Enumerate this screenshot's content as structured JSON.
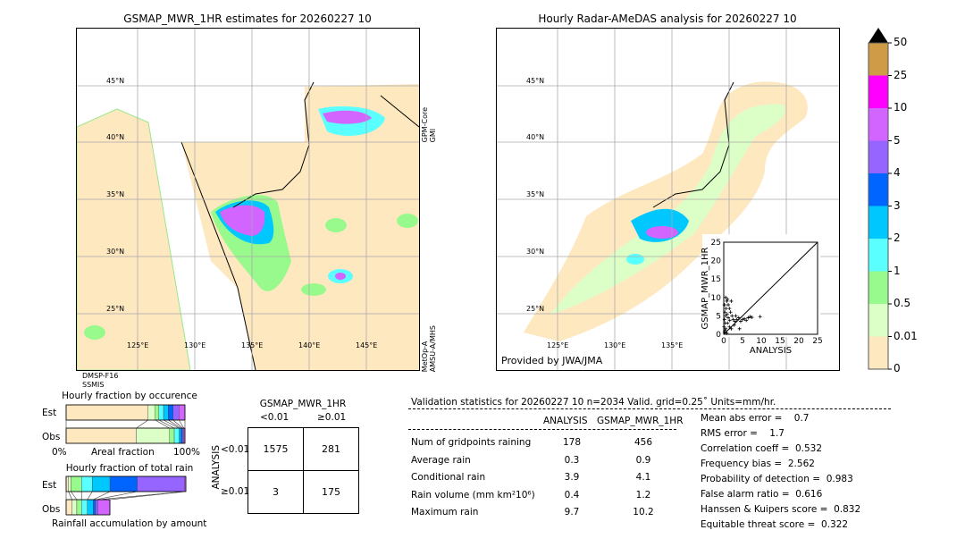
{
  "left_map": {
    "title": "GSMAP_MWR_1HR estimates for 20260227 10",
    "lat_labels": [
      "45°N",
      "40°N",
      "35°N",
      "30°N",
      "25°N"
    ],
    "lon_labels": [
      "125°E",
      "130°E",
      "135°E",
      "140°E",
      "145°E"
    ],
    "sensor_right_top": "GPM-Core\nGMI",
    "sensor_right_bottom": "MetOp-A\nAMSU-A/MHS",
    "sensor_bottom_left_1": "DMSP-F16",
    "sensor_bottom_left_2": "SSMIS"
  },
  "right_map": {
    "title": "Hourly Radar-AMeDAS analysis for 20260227 10",
    "lat_labels": [
      "45°N",
      "40°N",
      "35°N",
      "30°N",
      "25°N"
    ],
    "lon_labels": [
      "125°E",
      "130°E",
      "135°E"
    ],
    "credit": "Provided by JWA/JMA"
  },
  "colorbar": {
    "ticks": [
      "0",
      "0.01",
      "0.5",
      "1",
      "2",
      "3",
      "4",
      "5",
      "10",
      "25",
      "50"
    ],
    "colors": [
      "#fee8c0",
      "#dcffc8",
      "#98fa8c",
      "#5affff",
      "#00c8ff",
      "#0064ff",
      "#9664ff",
      "#d264ff",
      "#ff00ff",
      "#d09b46"
    ],
    "extend_color": "#000000"
  },
  "chart_data": [
    {
      "type": "scatter",
      "xlabel": "ANALYSIS",
      "ylabel": "GSMAP_MWR_1HR",
      "xlim": [
        0,
        25
      ],
      "ylim": [
        0,
        25
      ],
      "xticks": [
        "0",
        "5",
        "10",
        "15",
        "20",
        "25"
      ],
      "yticks": [
        "0",
        "5",
        "10",
        "15",
        "20",
        "25"
      ],
      "diagonal": true,
      "points": [
        [
          0.2,
          0.5
        ],
        [
          0.3,
          1
        ],
        [
          0.1,
          2
        ],
        [
          0.4,
          3
        ],
        [
          0.2,
          4
        ],
        [
          0.5,
          5
        ],
        [
          0.3,
          6
        ],
        [
          0.6,
          7
        ],
        [
          0.2,
          8
        ],
        [
          0.8,
          9
        ],
        [
          0.5,
          10
        ],
        [
          1,
          9.5
        ],
        [
          1.2,
          8
        ],
        [
          1.5,
          7
        ],
        [
          1.8,
          6
        ],
        [
          2,
          9
        ],
        [
          2.2,
          5
        ],
        [
          2.5,
          4
        ],
        [
          3,
          3.5
        ],
        [
          3.5,
          4
        ],
        [
          4,
          4.5
        ],
        [
          4.5,
          3.5
        ],
        [
          5,
          4
        ],
        [
          5.5,
          4.2
        ],
        [
          6,
          3.8
        ],
        [
          6.5,
          4.5
        ],
        [
          7,
          4.8
        ],
        [
          7.5,
          4.6
        ],
        [
          9.7,
          4.8
        ],
        [
          1,
          3
        ],
        [
          1.5,
          2
        ],
        [
          2,
          1.5
        ],
        [
          0.8,
          0.3
        ],
        [
          1.2,
          4.5
        ],
        [
          2.8,
          2.5
        ],
        [
          3.2,
          5
        ],
        [
          0.5,
          1.5
        ],
        [
          0.9,
          5.5
        ],
        [
          4.2,
          1.5
        ],
        [
          1.6,
          3.8
        ]
      ]
    },
    {
      "type": "bar",
      "title": "Hourly fraction by occurence",
      "xlabel": "Areal fraction",
      "xticks": [
        "0%",
        "100%"
      ],
      "categories": [
        "Est",
        "Obs"
      ],
      "series": [
        {
          "values_percent": [
            69,
            6,
            3,
            4,
            4,
            4,
            5,
            5
          ]
        },
        {
          "values_percent": [
            59,
            28,
            4,
            4,
            1.5,
            1.5,
            1,
            1
          ]
        }
      ]
    },
    {
      "type": "bar",
      "title": "Hourly fraction of total rain",
      "xlabel": "Rainfall accumulation by amount",
      "categories": [
        "Est",
        "Obs"
      ],
      "series": [
        {
          "values_percent": [
            2,
            2,
            9,
            9,
            15,
            23,
            40,
            1
          ]
        },
        {
          "values_percent": [
            5,
            4,
            4,
            5,
            5,
            2,
            2,
            10
          ]
        }
      ]
    }
  ],
  "contingency": {
    "title": "GSMAP_MWR_1HR",
    "col_labels": [
      "<0.01",
      "≥0.01"
    ],
    "row_title": "ANALYSIS",
    "row_labels": [
      "<0.01",
      "≥0.01"
    ],
    "cells": [
      [
        "1575",
        "281"
      ],
      [
        "3",
        "175"
      ]
    ]
  },
  "stats": {
    "header": "Validation statistics for 20260227 10  n=2034 Valid. grid=0.25˚ Units=mm/hr.",
    "col_analysis": "ANALYSIS",
    "col_gsmap": "GSMAP_MWR_1HR",
    "rows": [
      {
        "label": "Num of gridpoints raining",
        "a": "178",
        "g": "456"
      },
      {
        "label": "Average rain",
        "a": "0.3",
        "g": "0.9"
      },
      {
        "label": "Conditional rain",
        "a": "3.9",
        "g": "4.1"
      },
      {
        "label": "Rain volume (mm km²10⁶)",
        "a": "0.4",
        "g": "1.2"
      },
      {
        "label": "Maximum rain",
        "a": "9.7",
        "g": "10.2"
      }
    ],
    "scores": [
      "Mean abs error =    0.7",
      "RMS error =    1.7",
      "Correlation coeff =  0.532",
      "Frequency bias =  2.562",
      "Probability of detection =  0.983",
      "False alarm ratio =  0.616",
      "Hanssen & Kuipers score =  0.832",
      "Equitable threat score =  0.322"
    ]
  }
}
